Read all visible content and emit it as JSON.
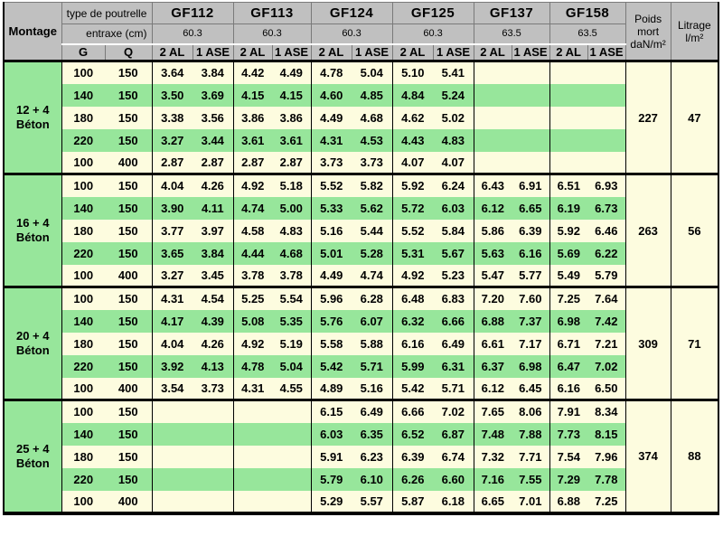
{
  "header": {
    "montage_label": "Montage",
    "type_de_poutrelle_label": "type de poutrelle",
    "entraxe_label": "entraxe (cm)",
    "g_label": "G",
    "q_label": "Q",
    "sub_al_label": "2 AL",
    "sub_ase_label": "1 ASE",
    "poutrelles": [
      {
        "name": "GF112",
        "entraxe": "60.3"
      },
      {
        "name": "GF113",
        "entraxe": "60.3"
      },
      {
        "name": "GF124",
        "entraxe": "60.3"
      },
      {
        "name": "GF125",
        "entraxe": "60.3"
      },
      {
        "name": "GF137",
        "entraxe": "63.5"
      },
      {
        "name": "GF158",
        "entraxe": "63.5"
      }
    ],
    "poids_mort_lines": [
      "Poids",
      "mort",
      "daN/m²"
    ],
    "litrage_lines": [
      "Litrage",
      "l/m²"
    ]
  },
  "groups": [
    {
      "montage_lines": [
        "12 + 4",
        "Béton"
      ],
      "poids_mort": "227",
      "litrage": "47",
      "rows": [
        {
          "g": "100",
          "q": "150",
          "values": [
            "3.64",
            "3.84",
            "4.42",
            "4.49",
            "4.78",
            "5.04",
            "5.10",
            "5.41",
            "",
            "",
            "",
            ""
          ]
        },
        {
          "g": "140",
          "q": "150",
          "values": [
            "3.50",
            "3.69",
            "4.15",
            "4.15",
            "4.60",
            "4.85",
            "4.84",
            "5.24",
            "",
            "",
            "",
            ""
          ]
        },
        {
          "g": "180",
          "q": "150",
          "values": [
            "3.38",
            "3.56",
            "3.86",
            "3.86",
            "4.49",
            "4.68",
            "4.62",
            "5.02",
            "",
            "",
            "",
            ""
          ]
        },
        {
          "g": "220",
          "q": "150",
          "values": [
            "3.27",
            "3.44",
            "3.61",
            "3.61",
            "4.31",
            "4.53",
            "4.43",
            "4.83",
            "",
            "",
            "",
            ""
          ]
        },
        {
          "g": "100",
          "q": "400",
          "values": [
            "2.87",
            "2.87",
            "2.87",
            "2.87",
            "3.73",
            "3.73",
            "4.07",
            "4.07",
            "",
            "",
            "",
            ""
          ]
        }
      ]
    },
    {
      "montage_lines": [
        "16 + 4",
        "Béton"
      ],
      "poids_mort": "263",
      "litrage": "56",
      "rows": [
        {
          "g": "100",
          "q": "150",
          "values": [
            "4.04",
            "4.26",
            "4.92",
            "5.18",
            "5.52",
            "5.82",
            "5.92",
            "6.24",
            "6.43",
            "6.91",
            "6.51",
            "6.93"
          ]
        },
        {
          "g": "140",
          "q": "150",
          "values": [
            "3.90",
            "4.11",
            "4.74",
            "5.00",
            "5.33",
            "5.62",
            "5.72",
            "6.03",
            "6.12",
            "6.65",
            "6.19",
            "6.73"
          ]
        },
        {
          "g": "180",
          "q": "150",
          "values": [
            "3.77",
            "3.97",
            "4.58",
            "4.83",
            "5.16",
            "5.44",
            "5.52",
            "5.84",
            "5.86",
            "6.39",
            "5.92",
            "6.46"
          ]
        },
        {
          "g": "220",
          "q": "150",
          "values": [
            "3.65",
            "3.84",
            "4.44",
            "4.68",
            "5.01",
            "5.28",
            "5.31",
            "5.67",
            "5.63",
            "6.16",
            "5.69",
            "6.22"
          ]
        },
        {
          "g": "100",
          "q": "400",
          "values": [
            "3.27",
            "3.45",
            "3.78",
            "3.78",
            "4.49",
            "4.74",
            "4.92",
            "5.23",
            "5.47",
            "5.77",
            "5.49",
            "5.79"
          ]
        }
      ]
    },
    {
      "montage_lines": [
        "20 + 4",
        "Béton"
      ],
      "poids_mort": "309",
      "litrage": "71",
      "rows": [
        {
          "g": "100",
          "q": "150",
          "values": [
            "4.31",
            "4.54",
            "5.25",
            "5.54",
            "5.96",
            "6.28",
            "6.48",
            "6.83",
            "7.20",
            "7.60",
            "7.25",
            "7.64"
          ]
        },
        {
          "g": "140",
          "q": "150",
          "values": [
            "4.17",
            "4.39",
            "5.08",
            "5.35",
            "5.76",
            "6.07",
            "6.32",
            "6.66",
            "6.88",
            "7.37",
            "6.98",
            "7.42"
          ]
        },
        {
          "g": "180",
          "q": "150",
          "values": [
            "4.04",
            "4.26",
            "4.92",
            "5.19",
            "5.58",
            "5.88",
            "6.16",
            "6.49",
            "6.61",
            "7.17",
            "6.71",
            "7.21"
          ]
        },
        {
          "g": "220",
          "q": "150",
          "values": [
            "3.92",
            "4.13",
            "4.78",
            "5.04",
            "5.42",
            "5.71",
            "5.99",
            "6.31",
            "6.37",
            "6.98",
            "6.47",
            "7.02"
          ]
        },
        {
          "g": "100",
          "q": "400",
          "values": [
            "3.54",
            "3.73",
            "4.31",
            "4.55",
            "4.89",
            "5.16",
            "5.42",
            "5.71",
            "6.12",
            "6.45",
            "6.16",
            "6.50"
          ]
        }
      ]
    },
    {
      "montage_lines": [
        "25 + 4",
        "Béton"
      ],
      "poids_mort": "374",
      "litrage": "88",
      "rows": [
        {
          "g": "100",
          "q": "150",
          "values": [
            "",
            "",
            "",
            "",
            "6.15",
            "6.49",
            "6.66",
            "7.02",
            "7.65",
            "8.06",
            "7.91",
            "8.34"
          ]
        },
        {
          "g": "140",
          "q": "150",
          "values": [
            "",
            "",
            "",
            "",
            "6.03",
            "6.35",
            "6.52",
            "6.87",
            "7.48",
            "7.88",
            "7.73",
            "8.15"
          ]
        },
        {
          "g": "180",
          "q": "150",
          "values": [
            "",
            "",
            "",
            "",
            "5.91",
            "6.23",
            "6.39",
            "6.74",
            "7.32",
            "7.71",
            "7.54",
            "7.96"
          ]
        },
        {
          "g": "220",
          "q": "150",
          "values": [
            "",
            "",
            "",
            "",
            "5.79",
            "6.10",
            "6.26",
            "6.60",
            "7.16",
            "7.55",
            "7.29",
            "7.78"
          ]
        },
        {
          "g": "100",
          "q": "400",
          "values": [
            "",
            "",
            "",
            "",
            "5.29",
            "5.57",
            "5.87",
            "6.18",
            "6.65",
            "7.01",
            "6.88",
            "7.25"
          ]
        }
      ]
    }
  ],
  "colors": {
    "row_green": "#97E69B",
    "row_cream": "#FDFCDF",
    "header_gray": "#C0C0C0",
    "border": "#000000"
  }
}
